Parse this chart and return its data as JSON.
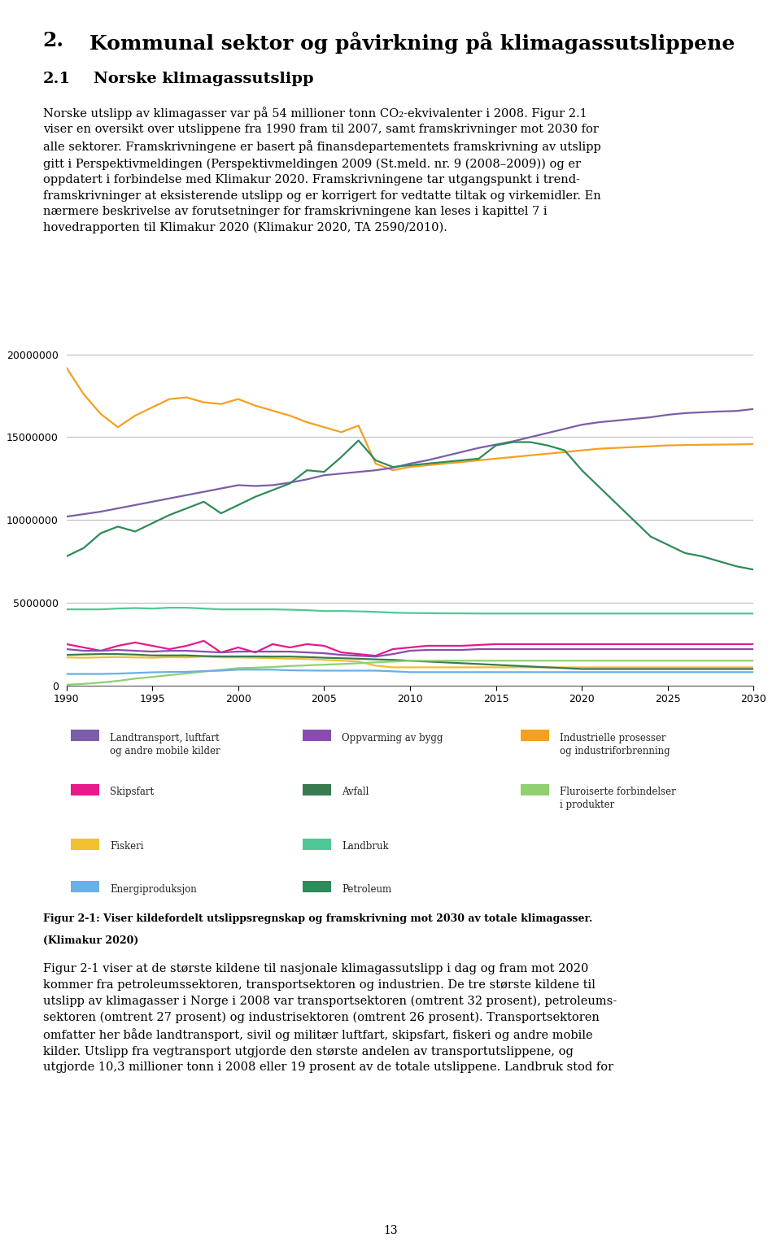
{
  "ylim": [
    0,
    21000000
  ],
  "yticks": [
    0,
    5000000,
    10000000,
    15000000,
    20000000
  ],
  "xlim": [
    1990,
    2030
  ],
  "xticks": [
    1990,
    1995,
    2000,
    2005,
    2010,
    2015,
    2020,
    2025,
    2030
  ],
  "series": {
    "petroleum": {
      "color": "#F5A020",
      "data_x": [
        1990,
        1991,
        1992,
        1993,
        1994,
        1995,
        1996,
        1997,
        1998,
        1999,
        2000,
        2001,
        2002,
        2003,
        2004,
        2005,
        2006,
        2007,
        2008,
        2009,
        2010,
        2011,
        2012,
        2013,
        2014,
        2015,
        2016,
        2017,
        2018,
        2019,
        2020,
        2021,
        2022,
        2023,
        2024,
        2025,
        2026,
        2027,
        2028,
        2029,
        2030
      ],
      "data_y": [
        19200000,
        17600000,
        16400000,
        15600000,
        16300000,
        16800000,
        17300000,
        17400000,
        17100000,
        17000000,
        17300000,
        16900000,
        16600000,
        16300000,
        15900000,
        15600000,
        15300000,
        15700000,
        13400000,
        13000000,
        13200000,
        13300000,
        13400000,
        13500000,
        13600000,
        13700000,
        13800000,
        13900000,
        14000000,
        14100000,
        14200000,
        14300000,
        14350000,
        14400000,
        14450000,
        14500000,
        14520000,
        14540000,
        14550000,
        14560000,
        14580000
      ]
    },
    "landtransport": {
      "color": "#7B5EA7",
      "data_x": [
        1990,
        1991,
        1992,
        1993,
        1994,
        1995,
        1996,
        1997,
        1998,
        1999,
        2000,
        2001,
        2002,
        2003,
        2004,
        2005,
        2006,
        2007,
        2008,
        2009,
        2010,
        2011,
        2012,
        2013,
        2014,
        2015,
        2016,
        2017,
        2018,
        2019,
        2020,
        2021,
        2022,
        2023,
        2024,
        2025,
        2026,
        2027,
        2028,
        2029,
        2030
      ],
      "data_y": [
        10200000,
        10350000,
        10500000,
        10700000,
        10900000,
        11100000,
        11300000,
        11500000,
        11700000,
        11900000,
        12100000,
        12050000,
        12100000,
        12250000,
        12450000,
        12700000,
        12800000,
        12900000,
        13000000,
        13150000,
        13400000,
        13600000,
        13850000,
        14100000,
        14350000,
        14550000,
        14750000,
        15000000,
        15250000,
        15500000,
        15750000,
        15900000,
        16000000,
        16100000,
        16200000,
        16350000,
        16450000,
        16500000,
        16550000,
        16580000,
        16700000
      ]
    },
    "industri": {
      "color": "#2E8B5A",
      "data_x": [
        1990,
        1991,
        1992,
        1993,
        1994,
        1995,
        1996,
        1997,
        1998,
        1999,
        2000,
        2001,
        2002,
        2003,
        2004,
        2005,
        2006,
        2007,
        2008,
        2009,
        2010,
        2011,
        2012,
        2013,
        2014,
        2015,
        2016,
        2017,
        2018,
        2019,
        2020,
        2021,
        2022,
        2023,
        2024,
        2025,
        2026,
        2027,
        2028,
        2029,
        2030
      ],
      "data_y": [
        7800000,
        8300000,
        9200000,
        9600000,
        9300000,
        9800000,
        10300000,
        10700000,
        11100000,
        10400000,
        10900000,
        11400000,
        11800000,
        12200000,
        13000000,
        12900000,
        13800000,
        14800000,
        13600000,
        13200000,
        13300000,
        13400000,
        13500000,
        13600000,
        13700000,
        14500000,
        14700000,
        14700000,
        14500000,
        14200000,
        13000000,
        12000000,
        11000000,
        10000000,
        9000000,
        8500000,
        8000000,
        7800000,
        7500000,
        7200000,
        7000000
      ]
    },
    "landbruk": {
      "color": "#50C896",
      "data_x": [
        1990,
        1991,
        1992,
        1993,
        1994,
        1995,
        1996,
        1997,
        1998,
        1999,
        2000,
        2001,
        2002,
        2003,
        2004,
        2005,
        2006,
        2007,
        2008,
        2009,
        2010,
        2011,
        2012,
        2013,
        2014,
        2015,
        2016,
        2017,
        2018,
        2019,
        2020,
        2021,
        2022,
        2023,
        2024,
        2025,
        2026,
        2027,
        2028,
        2029,
        2030
      ],
      "data_y": [
        4600000,
        4600000,
        4600000,
        4650000,
        4680000,
        4650000,
        4700000,
        4700000,
        4650000,
        4600000,
        4600000,
        4600000,
        4600000,
        4580000,
        4550000,
        4500000,
        4500000,
        4480000,
        4450000,
        4400000,
        4380000,
        4370000,
        4360000,
        4360000,
        4350000,
        4350000,
        4350000,
        4350000,
        4350000,
        4350000,
        4350000,
        4350000,
        4350000,
        4350000,
        4350000,
        4350000,
        4350000,
        4350000,
        4350000,
        4350000,
        4350000
      ]
    },
    "skipsfart": {
      "color": "#E8198A",
      "data_x": [
        1990,
        1991,
        1992,
        1993,
        1994,
        1995,
        1996,
        1997,
        1998,
        1999,
        2000,
        2001,
        2002,
        2003,
        2004,
        2005,
        2006,
        2007,
        2008,
        2009,
        2010,
        2011,
        2012,
        2013,
        2014,
        2015,
        2016,
        2017,
        2018,
        2019,
        2020,
        2021,
        2022,
        2023,
        2024,
        2025,
        2026,
        2027,
        2028,
        2029,
        2030
      ],
      "data_y": [
        2500000,
        2300000,
        2100000,
        2400000,
        2600000,
        2400000,
        2200000,
        2400000,
        2700000,
        2000000,
        2300000,
        2000000,
        2500000,
        2300000,
        2500000,
        2400000,
        2000000,
        1900000,
        1800000,
        2200000,
        2300000,
        2400000,
        2400000,
        2400000,
        2450000,
        2500000,
        2500000,
        2500000,
        2500000,
        2500000,
        2500000,
        2500000,
        2500000,
        2500000,
        2500000,
        2500000,
        2500000,
        2500000,
        2500000,
        2500000,
        2500000
      ]
    },
    "oppvarming": {
      "color": "#8B4CAF",
      "data_x": [
        1990,
        1991,
        1992,
        1993,
        1994,
        1995,
        1996,
        1997,
        1998,
        1999,
        2000,
        2001,
        2002,
        2003,
        2004,
        2005,
        2006,
        2007,
        2008,
        2009,
        2010,
        2011,
        2012,
        2013,
        2014,
        2015,
        2016,
        2017,
        2018,
        2019,
        2020,
        2021,
        2022,
        2023,
        2024,
        2025,
        2026,
        2027,
        2028,
        2029,
        2030
      ],
      "data_y": [
        2200000,
        2100000,
        2100000,
        2150000,
        2100000,
        2050000,
        2100000,
        2100000,
        2050000,
        2000000,
        2050000,
        2050000,
        2050000,
        2050000,
        2000000,
        1950000,
        1850000,
        1800000,
        1750000,
        1900000,
        2100000,
        2150000,
        2150000,
        2150000,
        2200000,
        2200000,
        2200000,
        2200000,
        2200000,
        2200000,
        2200000,
        2200000,
        2200000,
        2200000,
        2200000,
        2200000,
        2200000,
        2200000,
        2200000,
        2200000,
        2200000
      ]
    },
    "fiskeri": {
      "color": "#F0C030",
      "data_x": [
        1990,
        1991,
        1992,
        1993,
        1994,
        1995,
        1996,
        1997,
        1998,
        1999,
        2000,
        2001,
        2002,
        2003,
        2004,
        2005,
        2006,
        2007,
        2008,
        2009,
        2010,
        2011,
        2012,
        2013,
        2014,
        2015,
        2016,
        2017,
        2018,
        2019,
        2020,
        2021,
        2022,
        2023,
        2024,
        2025,
        2026,
        2027,
        2028,
        2029,
        2030
      ],
      "data_y": [
        1700000,
        1680000,
        1700000,
        1720000,
        1700000,
        1680000,
        1720000,
        1700000,
        1750000,
        1700000,
        1700000,
        1680000,
        1650000,
        1620000,
        1600000,
        1550000,
        1500000,
        1450000,
        1200000,
        1100000,
        1100000,
        1100000,
        1100000,
        1100000,
        1100000,
        1100000,
        1100000,
        1100000,
        1100000,
        1100000,
        1100000,
        1100000,
        1100000,
        1100000,
        1100000,
        1100000,
        1100000,
        1100000,
        1100000,
        1100000,
        1100000
      ]
    },
    "avfall": {
      "color": "#3A7A50",
      "data_x": [
        1990,
        1991,
        1992,
        1993,
        1994,
        1995,
        1996,
        1997,
        1998,
        1999,
        2000,
        2001,
        2002,
        2003,
        2004,
        2005,
        2006,
        2007,
        2008,
        2009,
        2010,
        2011,
        2012,
        2013,
        2014,
        2015,
        2016,
        2017,
        2018,
        2019,
        2020,
        2021,
        2022,
        2023,
        2024,
        2025,
        2026,
        2027,
        2028,
        2029,
        2030
      ],
      "data_y": [
        1850000,
        1880000,
        1900000,
        1900000,
        1870000,
        1820000,
        1820000,
        1820000,
        1780000,
        1760000,
        1760000,
        1760000,
        1750000,
        1750000,
        1720000,
        1680000,
        1650000,
        1620000,
        1580000,
        1550000,
        1500000,
        1450000,
        1400000,
        1350000,
        1300000,
        1250000,
        1200000,
        1150000,
        1100000,
        1050000,
        1000000,
        1000000,
        1000000,
        1000000,
        1000000,
        1000000,
        1000000,
        1000000,
        1000000,
        1000000,
        1000000
      ]
    },
    "fluroiserte": {
      "color": "#90D070",
      "data_x": [
        1990,
        1991,
        1992,
        1993,
        1994,
        1995,
        1996,
        1997,
        1998,
        1999,
        2000,
        2001,
        2002,
        2003,
        2004,
        2005,
        2006,
        2007,
        2008,
        2009,
        2010,
        2011,
        2012,
        2013,
        2014,
        2015,
        2016,
        2017,
        2018,
        2019,
        2020,
        2021,
        2022,
        2023,
        2024,
        2025,
        2026,
        2027,
        2028,
        2029,
        2030
      ],
      "data_y": [
        50000,
        100000,
        180000,
        280000,
        420000,
        520000,
        630000,
        730000,
        850000,
        950000,
        1050000,
        1080000,
        1120000,
        1180000,
        1220000,
        1260000,
        1300000,
        1350000,
        1400000,
        1450000,
        1500000,
        1500000,
        1500000,
        1500000,
        1500000,
        1500000,
        1500000,
        1500000,
        1500000,
        1500000,
        1500000,
        1500000,
        1500000,
        1500000,
        1500000,
        1500000,
        1500000,
        1500000,
        1500000,
        1500000,
        1500000
      ]
    },
    "energi": {
      "color": "#6AAFE6",
      "data_x": [
        1990,
        1991,
        1992,
        1993,
        1994,
        1995,
        1996,
        1997,
        1998,
        1999,
        2000,
        2001,
        2002,
        2003,
        2004,
        2005,
        2006,
        2007,
        2008,
        2009,
        2010,
        2011,
        2012,
        2013,
        2014,
        2015,
        2016,
        2017,
        2018,
        2019,
        2020,
        2021,
        2022,
        2023,
        2024,
        2025,
        2026,
        2027,
        2028,
        2029,
        2030
      ],
      "data_y": [
        700000,
        700000,
        700000,
        720000,
        760000,
        800000,
        820000,
        830000,
        870000,
        900000,
        960000,
        960000,
        960000,
        920000,
        910000,
        900000,
        900000,
        900000,
        900000,
        860000,
        810000,
        810000,
        810000,
        810000,
        810000,
        810000,
        810000,
        810000,
        810000,
        810000,
        810000,
        810000,
        810000,
        810000,
        810000,
        810000,
        810000,
        810000,
        810000,
        810000,
        810000
      ]
    }
  },
  "page_texts": {
    "chapter_num": "2.",
    "chapter_title": "Kommunal sektor og påvirkning på klimagassutslippene",
    "section_num": "2.1",
    "section_title": "Norske klimagassutslipp",
    "body_text": "Norske utslipp av klimagasser var på 54 millioner tonn CO₂-ekvivalenter i 2008. Figur 2.1\nviser en oversikt over utslippene fra 1990 fram til 2007, samt framskrivninger mot 2030 for\nalle sektorer. Framskrivningene er basert på finansdepartementets framskrivning av utslipp\ngitt i Perspektivmeldingen (Perspektivmeldingen 2009 (St.meld. nr. 9 (2008–2009)) og er\noppdatert i forbindelse med Klimakur 2020. Framskrivningene tar utgangspunkt i trend-\nframskrivninger at eksisterende utslipp og er korrigert for vedtatte tiltak og virkemidler. En\nnærmere beskrivelse av forutsetninger for framskrivningene kan leses i kapittel 7 i\nhovedrapporten til Klimakur 2020 (Klimakur 2020, TA 2590/2010).",
    "fig_caption_bold": "Figur 2-1: Viser kildefordelt utslippsregnskap og framskrivning mot 2030 av totale klimagasser.",
    "fig_caption_normal": "(Klimakur 2020)",
    "bottom_text": "Figur 2-1 viser at de største kildene til nasjonale klimagassutslipp i dag og fram mot 2020\nkommer fra petroleumssektoren, transportsektoren og industrien. De tre største kildene til\nutslipp av klimagasser i Norge i 2008 var transportsektoren (omtrent 32 prosent), petroleums-\nsektoren (omtrent 27 prosent) og industrisektoren (omtrent 26 prosent). Transportsektoren\nomfatter her både landtransport, sivil og militær luftfart, skipsfart, fiskeri og andre mobile\nkilder. Utslipp fra vegtransport utgjorde den største andelen av transportutslippene, og\nutgjorde 10,3 millioner tonn i 2008 eller 19 prosent av de totale utslippene. Landbruk stod for",
    "page_number": "13"
  },
  "legend_items": [
    {
      "label": "Landtransport, luftfart\nog andre mobile kilder",
      "color": "#7B5EA7",
      "col": 0,
      "row": 0
    },
    {
      "label": "Oppvarming av bygg",
      "color": "#8B4CAF",
      "col": 1,
      "row": 0
    },
    {
      "label": "Industrielle prosesser\nog industriforbrenning",
      "color": "#F5A020",
      "col": 2,
      "row": 0
    },
    {
      "label": "Skipsfart",
      "color": "#E8198A",
      "col": 0,
      "row": 1
    },
    {
      "label": "Avfall",
      "color": "#3A7A50",
      "col": 1,
      "row": 1
    },
    {
      "label": "Fluroiserte forbindelser\ni produkter",
      "color": "#90D070",
      "col": 2,
      "row": 1
    },
    {
      "label": "Fiskeri",
      "color": "#F0C030",
      "col": 0,
      "row": 2
    },
    {
      "label": "Landbruk",
      "color": "#50C896",
      "col": 1,
      "row": 2
    },
    {
      "label": "Energiproduksjon",
      "color": "#6AAFE6",
      "col": 0,
      "row": 3
    },
    {
      "label": "Petroleum",
      "color": "#2E8B5A",
      "col": 1,
      "row": 3
    }
  ]
}
